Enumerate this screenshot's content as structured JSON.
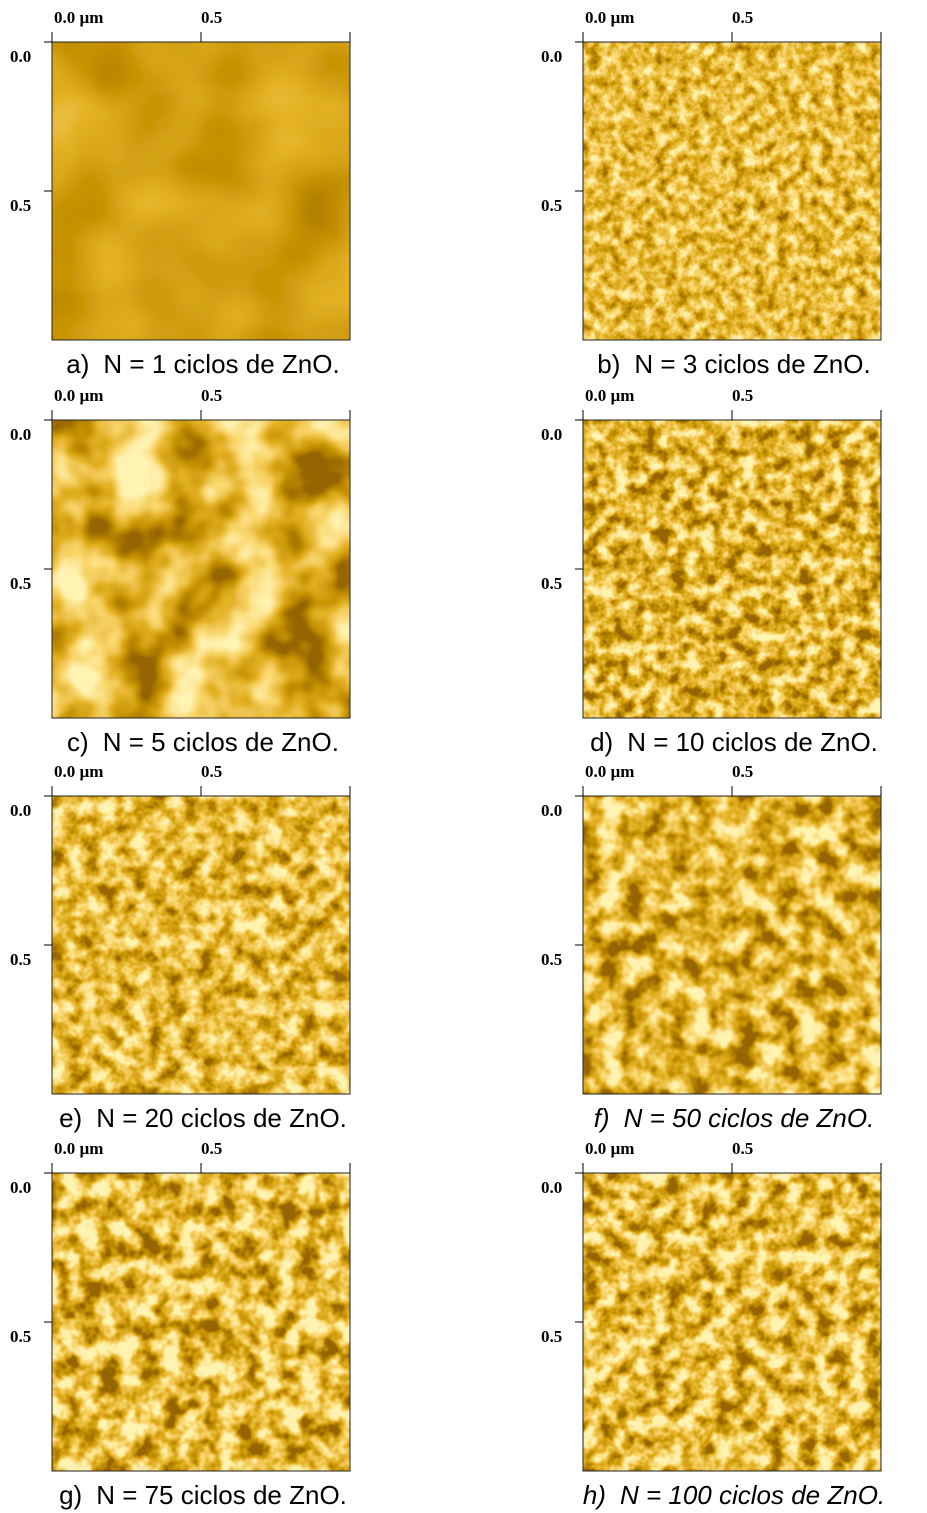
{
  "panels": [
    {
      "label": "a)",
      "caption": "N = 1 ciclos de ZnO.",
      "x_ticks": [
        "0.0 µm",
        "0.5"
      ],
      "y_ticks": [
        "0.0",
        "0.5"
      ]
    },
    {
      "label": "b)",
      "caption": "N = 3 ciclos de ZnO.",
      "x_ticks": [
        "0.0 µm",
        "0.5"
      ],
      "y_ticks": [
        "0.0",
        "0.5"
      ]
    },
    {
      "label": "c)",
      "caption": "N = 5 ciclos de ZnO.",
      "x_ticks": [
        "0.0 µm",
        "0.5"
      ],
      "y_ticks": [
        "0.0",
        "0.5"
      ]
    },
    {
      "label": "d)",
      "caption": "N = 10 ciclos de ZnO.",
      "x_ticks": [
        "0.0 µm",
        "0.5"
      ],
      "y_ticks": [
        "0.0",
        "0.5"
      ]
    },
    {
      "label": "e)",
      "caption": "N = 20 ciclos de ZnO.",
      "x_ticks": [
        "0.0 µm",
        "0.5"
      ],
      "y_ticks": [
        "0.0",
        "0.5"
      ]
    },
    {
      "label": "f)",
      "caption": "N = 50 ciclos de ZnO.",
      "x_ticks": [
        "0.0 µm",
        "0.5"
      ],
      "y_ticks": [
        "0.0",
        "0.5"
      ]
    },
    {
      "label": "g)",
      "caption": "N = 75 ciclos de ZnO.",
      "x_ticks": [
        "0.0 µm",
        "0.5"
      ],
      "y_ticks": [
        "0.0",
        "0.5"
      ]
    },
    {
      "label": "h)",
      "caption": "N = 100 ciclos de ZnO.",
      "x_ticks": [
        "0.0 µm",
        "0.5"
      ],
      "y_ticks": [
        "0.0",
        "0.5"
      ]
    }
  ]
}
